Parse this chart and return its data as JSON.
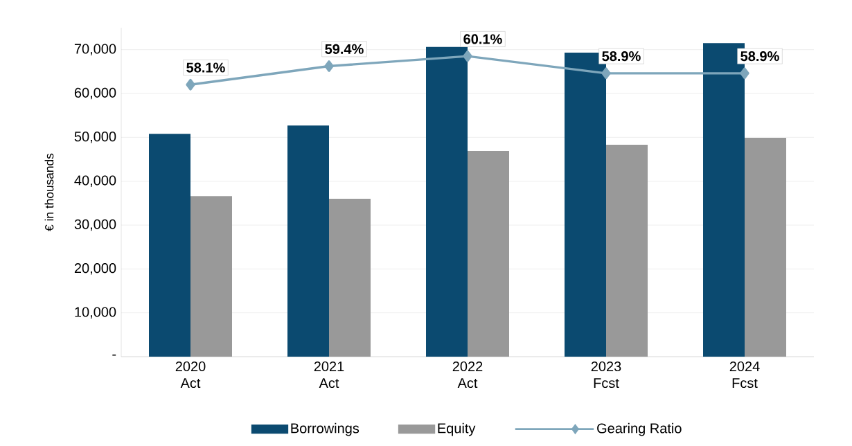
{
  "chart_data": {
    "type": "bar",
    "ylabel": "€ in thousands",
    "categories": [
      "2020 Act",
      "2021 Act",
      "2022 Act",
      "2023 Fcst",
      "2024 Fcst"
    ],
    "series": [
      {
        "name": "Borrowings",
        "color": "#0b4a70",
        "values": [
          50800,
          52700,
          70600,
          69300,
          71500
        ]
      },
      {
        "name": "Equity",
        "color": "#999999",
        "values": [
          36600,
          36000,
          46900,
          48300,
          49900
        ]
      },
      {
        "name": "Gearing Ratio",
        "type": "line",
        "axis": "y2",
        "color": "#7ea6bb",
        "marker": "diamond",
        "line_style": "solid",
        "values": [
          58.1,
          59.4,
          60.1,
          58.9,
          58.9
        ],
        "value_labels": [
          "58.1%",
          "59.4%",
          "60.1%",
          "58.9%",
          "58.9%"
        ]
      }
    ],
    "ylim": [
      0,
      75000
    ],
    "yticks": [
      {
        "value": 0,
        "label": "-"
      },
      {
        "value": 10000,
        "label": "10,000"
      },
      {
        "value": 20000,
        "label": "20,000"
      },
      {
        "value": 30000,
        "label": "30,000"
      },
      {
        "value": 40000,
        "label": "40,000"
      },
      {
        "value": 50000,
        "label": "50,000"
      },
      {
        "value": 60000,
        "label": "60,000"
      },
      {
        "value": 70000,
        "label": "70,000"
      }
    ],
    "y2lim": [
      39,
      62.1
    ],
    "grid": "y",
    "legend": "bottom"
  }
}
